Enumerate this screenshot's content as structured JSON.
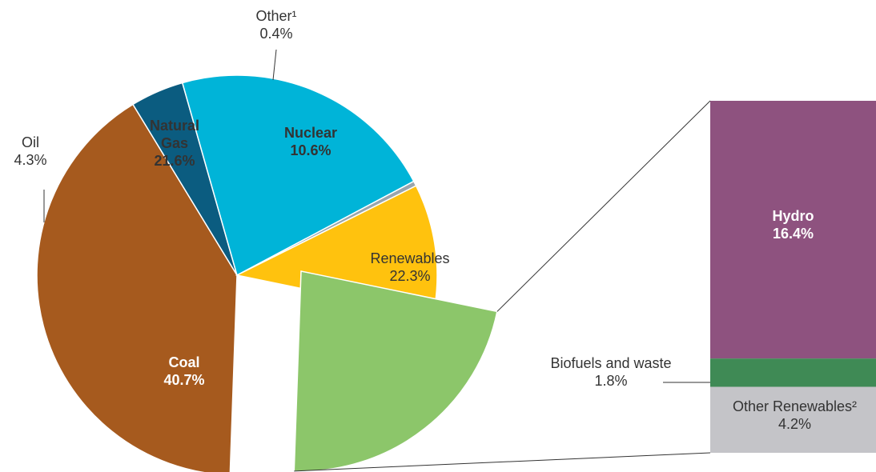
{
  "chart_data": [
    {
      "type": "pie",
      "slices": [
        {
          "label_lines": [
            "Coal",
            "40.7%"
          ],
          "name": "Coal",
          "value": 40.7,
          "color": "#A65A1E",
          "label_style": "light"
        },
        {
          "label_lines": [
            "Oil",
            "4.3%"
          ],
          "name": "Oil",
          "value": 4.3,
          "color": "#0B5C80",
          "label_style": "dark"
        },
        {
          "label_lines": [
            "Natural",
            "Gas",
            "21.6%"
          ],
          "name": "Natural Gas",
          "value": 21.6,
          "color": "#00B4D8",
          "label_style": "bold-dark"
        },
        {
          "label_lines": [
            "Other¹",
            "0.4%"
          ],
          "name": "Other¹",
          "value": 0.4,
          "color": "#9AA5AD",
          "label_style": "dark"
        },
        {
          "label_lines": [
            "Nuclear",
            "10.6%"
          ],
          "name": "Nuclear",
          "value": 10.6,
          "color": "#FFC20E",
          "label_style": "bold-dark"
        },
        {
          "label_lines": [
            "Renewables",
            "22.3%"
          ],
          "name": "Renewables",
          "value": 22.3,
          "color": "#8CC66A",
          "label_style": "dark",
          "exploded": true
        }
      ]
    },
    {
      "type": "bar",
      "stacked": true,
      "segments": [
        {
          "label_lines": [
            "Hydro",
            "16.4%"
          ],
          "name": "Hydro",
          "value": 16.4,
          "color": "#8E527F",
          "label_style": "light"
        },
        {
          "label_lines": [
            "Biofuels and waste",
            "1.8%"
          ],
          "name": "Biofuels and waste",
          "value": 1.8,
          "color": "#3F8A55",
          "label_style": "dark"
        },
        {
          "label_lines": [
            "Other Renewables²",
            "4.2%"
          ],
          "name": "Other Renewables²",
          "value": 4.2,
          "color": "#C4C4C8",
          "label_style": "dark"
        }
      ]
    }
  ]
}
